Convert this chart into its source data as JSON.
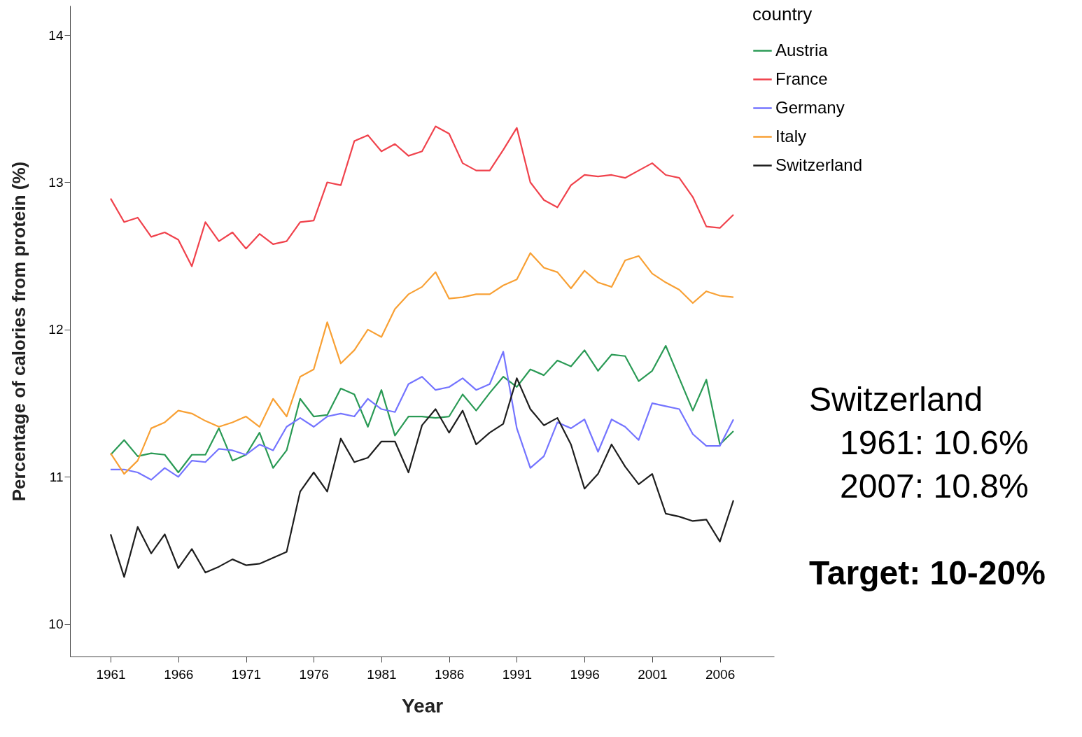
{
  "chart_data": {
    "type": "line",
    "xlabel": "Year",
    "ylabel": "Percentage of calories from protein (%)",
    "legend_title": "country",
    "legend": "top right",
    "grid": false,
    "marker": "none",
    "line_style": "solid",
    "x": [
      1961,
      1962,
      1963,
      1964,
      1965,
      1966,
      1967,
      1968,
      1969,
      1970,
      1971,
      1972,
      1973,
      1974,
      1975,
      1976,
      1977,
      1978,
      1979,
      1980,
      1981,
      1982,
      1983,
      1984,
      1985,
      1986,
      1987,
      1988,
      1989,
      1990,
      1991,
      1992,
      1993,
      1994,
      1995,
      1996,
      1997,
      1998,
      1999,
      2000,
      2001,
      2002,
      2003,
      2004,
      2005,
      2006,
      2007
    ],
    "xlim": [
      1958,
      2010
    ],
    "xticks": [
      1961,
      1966,
      1971,
      1976,
      1981,
      1986,
      1991,
      1996,
      2001,
      2006
    ],
    "ylim": [
      9.78,
      14.2
    ],
    "yticks": [
      10,
      11,
      12,
      13,
      14
    ],
    "series": [
      {
        "name": "Austria",
        "color": "#2a9a55",
        "values": [
          11.15,
          11.25,
          11.14,
          11.16,
          11.15,
          11.03,
          11.15,
          11.15,
          11.33,
          11.11,
          11.15,
          11.3,
          11.06,
          11.18,
          11.53,
          11.41,
          11.42,
          11.6,
          11.56,
          11.34,
          11.59,
          11.28,
          11.41,
          11.41,
          11.4,
          11.41,
          11.56,
          11.45,
          11.57,
          11.68,
          11.61,
          11.73,
          11.69,
          11.79,
          11.75,
          11.86,
          11.72,
          11.83,
          11.82,
          11.65,
          11.72,
          11.89,
          11.67,
          11.45,
          11.66,
          11.22,
          11.31
        ]
      },
      {
        "name": "France",
        "color": "#f0424c",
        "values": [
          12.89,
          12.73,
          12.76,
          12.63,
          12.66,
          12.61,
          12.43,
          12.73,
          12.6,
          12.66,
          12.55,
          12.65,
          12.58,
          12.6,
          12.73,
          12.74,
          13.0,
          12.98,
          13.28,
          13.32,
          13.21,
          13.26,
          13.18,
          13.21,
          13.38,
          13.33,
          13.13,
          13.08,
          13.08,
          13.22,
          13.37,
          13.0,
          12.88,
          12.83,
          12.98,
          13.05,
          13.04,
          13.05,
          13.03,
          13.08,
          13.13,
          13.05,
          13.03,
          12.9,
          12.7,
          12.69,
          12.78
        ]
      },
      {
        "name": "Germany",
        "color": "#7474ff",
        "values": [
          11.05,
          11.05,
          11.03,
          10.98,
          11.06,
          11.0,
          11.11,
          11.1,
          11.19,
          11.18,
          11.15,
          11.22,
          11.18,
          11.34,
          11.4,
          11.34,
          11.41,
          11.43,
          11.41,
          11.53,
          11.46,
          11.44,
          11.63,
          11.68,
          11.59,
          11.61,
          11.67,
          11.59,
          11.63,
          11.85,
          11.33,
          11.06,
          11.14,
          11.37,
          11.33,
          11.39,
          11.17,
          11.39,
          11.34,
          11.25,
          11.5,
          11.48,
          11.46,
          11.29,
          11.21,
          11.21,
          11.39
        ]
      },
      {
        "name": "Italy",
        "color": "#f8a034",
        "values": [
          11.16,
          11.02,
          11.11,
          11.33,
          11.37,
          11.45,
          11.43,
          11.38,
          11.34,
          11.37,
          11.41,
          11.34,
          11.53,
          11.41,
          11.68,
          11.73,
          12.05,
          11.77,
          11.86,
          12.0,
          11.95,
          12.14,
          12.24,
          12.29,
          12.39,
          12.21,
          12.22,
          12.24,
          12.24,
          12.3,
          12.34,
          12.52,
          12.42,
          12.39,
          12.28,
          12.4,
          12.32,
          12.29,
          12.47,
          12.5,
          12.38,
          12.32,
          12.27,
          12.18,
          12.26,
          12.23,
          12.22
        ]
      },
      {
        "name": "Switzerland",
        "color": "#1e1e1e",
        "values": [
          10.61,
          10.32,
          10.66,
          10.48,
          10.61,
          10.38,
          10.51,
          10.35,
          10.39,
          10.44,
          10.4,
          10.41,
          10.45,
          10.49,
          10.9,
          11.03,
          10.9,
          11.26,
          11.1,
          11.13,
          11.24,
          11.24,
          11.03,
          11.35,
          11.46,
          11.3,
          11.45,
          11.22,
          11.3,
          11.36,
          11.67,
          11.46,
          11.35,
          11.4,
          11.22,
          10.92,
          11.02,
          11.22,
          11.07,
          10.95,
          11.02,
          10.75,
          10.73,
          10.7,
          10.71,
          10.56,
          10.84
        ]
      }
    ],
    "annotations": [
      "Switzerland",
      "1961: 10.6%",
      "2007: 10.8%",
      "Target: 10-20%"
    ]
  }
}
